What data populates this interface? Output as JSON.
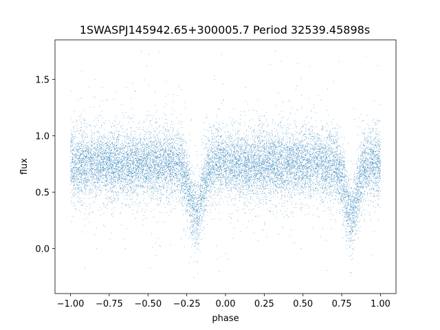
{
  "chart_data": {
    "type": "scatter",
    "title": "1SWASPJ145942.65+300005.7 Period 32539.45898s",
    "xlabel": "phase",
    "ylabel": "flux",
    "xlim": [
      -1.1,
      1.1
    ],
    "ylim": [
      -0.4,
      1.85
    ],
    "x_ticks": [
      -1.0,
      -0.75,
      -0.5,
      -0.25,
      0.0,
      0.25,
      0.5,
      0.75,
      1.0
    ],
    "x_tick_labels": [
      "−1.00",
      "−0.75",
      "−0.50",
      "−0.25",
      "0.00",
      "0.25",
      "0.50",
      "0.75",
      "1.00"
    ],
    "y_ticks": [
      0.0,
      0.5,
      1.0,
      1.5
    ],
    "y_tick_labels": [
      "0.0",
      "0.5",
      "1.0",
      "1.5"
    ],
    "grid": false,
    "legend": "none",
    "point_color": "#1f77b4",
    "series": [
      {
        "phase_range": [
          -1.0,
          1.0
        ],
        "baseline_flux": 0.75,
        "scatter_sd": 0.15,
        "eclipses": [
          {
            "center_phase": -0.19,
            "min_flux": 0.3,
            "half_width": 0.07
          },
          {
            "center_phase": 0.81,
            "min_flux": 0.3,
            "half_width": 0.07
          }
        ],
        "flux_range_observed": [
          -0.3,
          1.8
        ]
      }
    ]
  }
}
